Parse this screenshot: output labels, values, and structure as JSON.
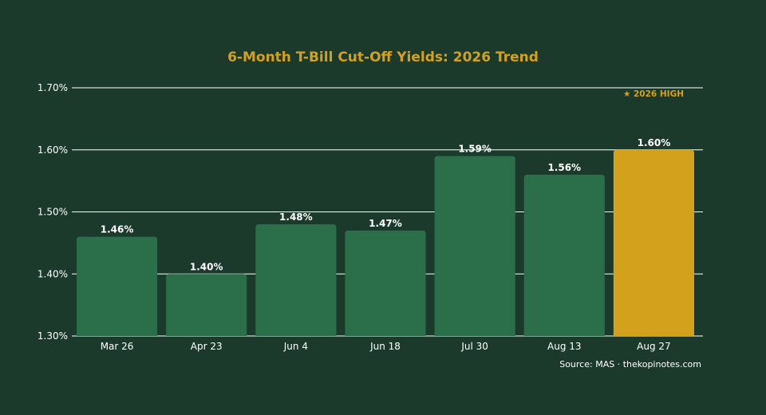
{
  "colors": {
    "background": "#1b3a2c",
    "bar": "#2a6e4a",
    "highlight": "#d4a11c",
    "title": "#d4a11c",
    "text": "#ffffff",
    "grid": "#ffffff"
  },
  "source": "Source: MAS · thekopinotes.com",
  "chart_data": {
    "type": "bar",
    "title": "6-Month T-Bill Cut-Off Yields: 2026 Trend",
    "xlabel": "",
    "ylabel": "",
    "categories": [
      "Mar 26",
      "Apr 23",
      "Jun 4",
      "Jun 18",
      "Jul 30",
      "Aug 13",
      "Aug 27"
    ],
    "values": [
      1.46,
      1.4,
      1.48,
      1.47,
      1.59,
      1.56,
      1.6
    ],
    "value_labels": [
      "1.46%",
      "1.40%",
      "1.48%",
      "1.47%",
      "1.59%",
      "1.56%",
      "1.60%"
    ],
    "highlight_index": 6,
    "annotation": "★ 2026 HIGH",
    "ylim": [
      1.3,
      1.7
    ],
    "yticks": [
      1.3,
      1.4,
      1.5,
      1.6,
      1.7
    ],
    "ytick_labels": [
      "1.30%",
      "1.40%",
      "1.50%",
      "1.60%",
      "1.70%"
    ],
    "grid": true,
    "legend": "none"
  }
}
